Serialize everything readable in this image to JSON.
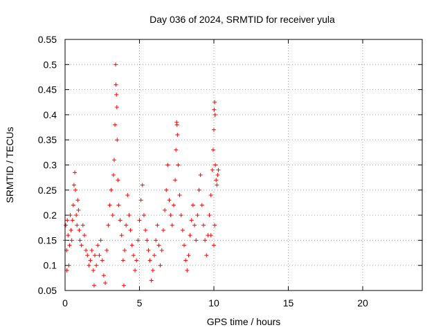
{
  "chart_data": {
    "type": "scatter",
    "title": "Day 036 of 2024, SRMTID for receiver yula",
    "xlabel": "GPS time / hours",
    "ylabel": "SRMTID / TECUs",
    "xlim": [
      0,
      24
    ],
    "ylim": [
      0.05,
      0.55
    ],
    "xticks": [
      0,
      5,
      10,
      15,
      20
    ],
    "yticks": [
      0.05,
      0.1,
      0.15,
      0.2,
      0.25,
      0.3,
      0.35,
      0.4,
      0.45,
      0.5,
      0.55
    ],
    "grid": true,
    "marker": "+",
    "color": "#ff0000",
    "series": [
      {
        "name": "SRMTID",
        "points": [
          [
            0.0,
            0.15
          ],
          [
            0.05,
            0.18
          ],
          [
            0.1,
            0.13
          ],
          [
            0.12,
            0.09
          ],
          [
            0.15,
            0.19
          ],
          [
            0.2,
            0.16
          ],
          [
            0.25,
            0.1
          ],
          [
            0.3,
            0.14
          ],
          [
            0.35,
            0.2
          ],
          [
            0.4,
            0.17
          ],
          [
            0.45,
            0.15
          ],
          [
            0.5,
            0.19
          ],
          [
            0.55,
            0.22
          ],
          [
            0.6,
            0.26
          ],
          [
            0.65,
            0.285
          ],
          [
            0.7,
            0.25
          ],
          [
            0.75,
            0.2
          ],
          [
            0.8,
            0.18
          ],
          [
            0.85,
            0.23
          ],
          [
            0.9,
            0.21
          ],
          [
            0.95,
            0.17
          ],
          [
            1.0,
            0.15
          ],
          [
            1.1,
            0.14
          ],
          [
            1.2,
            0.18
          ],
          [
            1.3,
            0.16
          ],
          [
            1.4,
            0.13
          ],
          [
            1.5,
            0.12
          ],
          [
            1.6,
            0.1
          ],
          [
            1.7,
            0.11
          ],
          [
            1.8,
            0.13
          ],
          [
            1.9,
            0.09
          ],
          [
            1.95,
            0.06
          ],
          [
            2.0,
            0.12
          ],
          [
            2.1,
            0.1
          ],
          [
            2.2,
            0.14
          ],
          [
            2.3,
            0.12
          ],
          [
            2.4,
            0.15
          ],
          [
            2.5,
            0.11
          ],
          [
            2.6,
            0.08
          ],
          [
            2.7,
            0.065
          ],
          [
            2.8,
            0.13
          ],
          [
            2.9,
            0.18
          ],
          [
            3.0,
            0.22
          ],
          [
            3.1,
            0.25
          ],
          [
            3.2,
            0.2
          ],
          [
            3.25,
            0.28
          ],
          [
            3.3,
            0.31
          ],
          [
            3.35,
            0.38
          ],
          [
            3.4,
            0.5
          ],
          [
            3.42,
            0.46
          ],
          [
            3.45,
            0.44
          ],
          [
            3.48,
            0.415
          ],
          [
            3.5,
            0.35
          ],
          [
            3.55,
            0.27
          ],
          [
            3.6,
            0.22
          ],
          [
            3.7,
            0.19
          ],
          [
            3.8,
            0.16
          ],
          [
            3.9,
            0.11
          ],
          [
            3.95,
            0.06
          ],
          [
            4.0,
            0.13
          ],
          [
            4.1,
            0.18
          ],
          [
            4.2,
            0.24
          ],
          [
            4.3,
            0.2
          ],
          [
            4.4,
            0.17
          ],
          [
            4.5,
            0.14
          ],
          [
            4.6,
            0.12
          ],
          [
            4.7,
            0.09
          ],
          [
            4.8,
            0.11
          ],
          [
            4.9,
            0.15
          ],
          [
            5.0,
            0.19
          ],
          [
            5.1,
            0.23
          ],
          [
            5.2,
            0.26
          ],
          [
            5.3,
            0.2
          ],
          [
            5.4,
            0.17
          ],
          [
            5.5,
            0.15
          ],
          [
            5.6,
            0.13
          ],
          [
            5.7,
            0.11
          ],
          [
            5.8,
            0.07
          ],
          [
            5.9,
            0.09
          ],
          [
            6.0,
            0.12
          ],
          [
            6.1,
            0.15
          ],
          [
            6.2,
            0.18
          ],
          [
            6.3,
            0.14
          ],
          [
            6.4,
            0.1
          ],
          [
            6.5,
            0.13
          ],
          [
            6.6,
            0.17
          ],
          [
            6.7,
            0.21
          ],
          [
            6.8,
            0.25
          ],
          [
            6.9,
            0.3
          ],
          [
            7.0,
            0.23
          ],
          [
            7.1,
            0.2
          ],
          [
            7.2,
            0.18
          ],
          [
            7.3,
            0.22
          ],
          [
            7.4,
            0.27
          ],
          [
            7.45,
            0.33
          ],
          [
            7.5,
            0.385
          ],
          [
            7.52,
            0.38
          ],
          [
            7.55,
            0.36
          ],
          [
            7.6,
            0.3
          ],
          [
            7.7,
            0.24
          ],
          [
            7.8,
            0.2
          ],
          [
            7.9,
            0.17
          ],
          [
            8.0,
            0.14
          ],
          [
            8.1,
            0.11
          ],
          [
            8.2,
            0.09
          ],
          [
            8.3,
            0.12
          ],
          [
            8.4,
            0.16
          ],
          [
            8.5,
            0.19
          ],
          [
            8.6,
            0.22
          ],
          [
            8.7,
            0.18
          ],
          [
            8.8,
            0.15
          ],
          [
            8.9,
            0.2
          ],
          [
            9.0,
            0.25
          ],
          [
            9.1,
            0.28
          ],
          [
            9.2,
            0.22
          ],
          [
            9.3,
            0.18
          ],
          [
            9.4,
            0.15
          ],
          [
            9.5,
            0.12
          ],
          [
            9.6,
            0.16
          ],
          [
            9.7,
            0.2
          ],
          [
            9.8,
            0.24
          ],
          [
            9.9,
            0.29
          ],
          [
            9.95,
            0.33
          ],
          [
            10.0,
            0.37
          ],
          [
            10.02,
            0.41
          ],
          [
            10.05,
            0.425
          ],
          [
            10.08,
            0.4
          ],
          [
            10.1,
            0.3
          ],
          [
            10.15,
            0.27
          ],
          [
            10.2,
            0.26
          ],
          [
            10.25,
            0.28
          ],
          [
            10.3,
            0.29
          ],
          [
            10.0,
            0.14
          ],
          [
            10.05,
            0.18
          ],
          [
            9.8,
            0.16
          ]
        ]
      }
    ]
  }
}
